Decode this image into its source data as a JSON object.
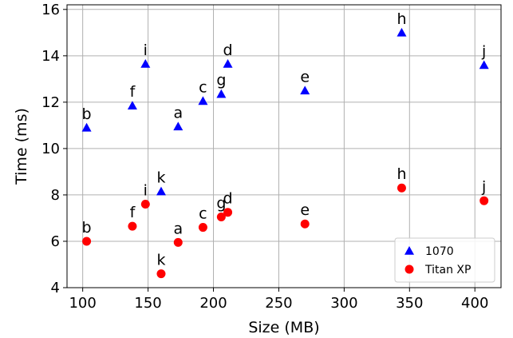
{
  "chart_data": {
    "type": "scatter",
    "xlabel": "Size (MB)",
    "ylabel": "Time (ms)",
    "xlim": [
      88,
      420
    ],
    "ylim": [
      4,
      16.2
    ],
    "xticks": [
      100,
      150,
      200,
      250,
      300,
      350,
      400
    ],
    "yticks": [
      4,
      6,
      8,
      10,
      12,
      14,
      16
    ],
    "grid": true,
    "legend_position": "bottom-right",
    "series": [
      {
        "name": "1070",
        "marker": "triangle",
        "color": "#0000ff",
        "points": [
          {
            "label": "b",
            "x": 103,
            "y": 10.9
          },
          {
            "label": "f",
            "x": 138,
            "y": 11.85
          },
          {
            "label": "i",
            "x": 148,
            "y": 13.65
          },
          {
            "label": "k",
            "x": 160,
            "y": 8.15
          },
          {
            "label": "a",
            "x": 173,
            "y": 10.95
          },
          {
            "label": "c",
            "x": 192,
            "y": 12.05
          },
          {
            "label": "g",
            "x": 206,
            "y": 12.35
          },
          {
            "label": "d",
            "x": 211,
            "y": 13.65
          },
          {
            "label": "e",
            "x": 270,
            "y": 12.5
          },
          {
            "label": "h",
            "x": 344,
            "y": 15.0
          },
          {
            "label": "j",
            "x": 407,
            "y": 13.6
          }
        ]
      },
      {
        "name": "Titan XP",
        "marker": "circle",
        "color": "#ff0000",
        "points": [
          {
            "label": "b",
            "x": 103,
            "y": 6.0
          },
          {
            "label": "f",
            "x": 138,
            "y": 6.65
          },
          {
            "label": "i",
            "x": 148,
            "y": 7.6
          },
          {
            "label": "k",
            "x": 160,
            "y": 4.6
          },
          {
            "label": "a",
            "x": 173,
            "y": 5.95
          },
          {
            "label": "c",
            "x": 192,
            "y": 6.6
          },
          {
            "label": "g",
            "x": 206,
            "y": 7.05
          },
          {
            "label": "d",
            "x": 211,
            "y": 7.25
          },
          {
            "label": "e",
            "x": 270,
            "y": 6.75
          },
          {
            "label": "h",
            "x": 344,
            "y": 8.3
          },
          {
            "label": "j",
            "x": 407,
            "y": 7.75
          }
        ]
      }
    ]
  }
}
